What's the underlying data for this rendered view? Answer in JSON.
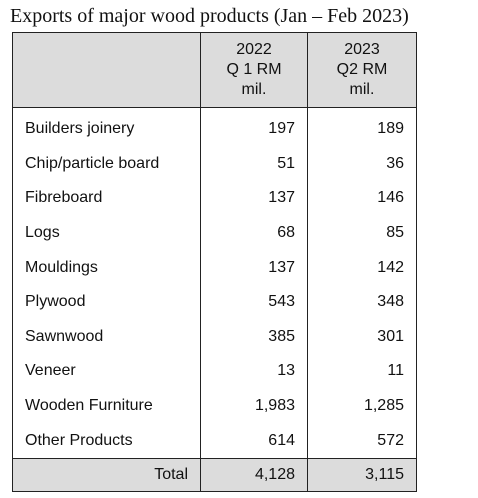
{
  "title": "Exports of major wood products (Jan – Feb 2023)",
  "header": {
    "col2": {
      "year": "2022",
      "period": "Q 1 RM",
      "unit": "mil."
    },
    "col3": {
      "year": "2023",
      "period": "Q2 RM",
      "unit": "mil."
    }
  },
  "rows": [
    {
      "product": "Builders joinery",
      "v2022": "197",
      "v2023": "189"
    },
    {
      "product": "Chip/particle board",
      "v2022": "51",
      "v2023": "36"
    },
    {
      "product": "Fibreboard",
      "v2022": "137",
      "v2023": "146"
    },
    {
      "product": "Logs",
      "v2022": "68",
      "v2023": "85"
    },
    {
      "product": "Mouldings",
      "v2022": "137",
      "v2023": "142"
    },
    {
      "product": "Plywood",
      "v2022": "543",
      "v2023": "348"
    },
    {
      "product": "Sawnwood",
      "v2022": "385",
      "v2023": "301"
    },
    {
      "product": "Veneer",
      "v2022": "13",
      "v2023": "11"
    },
    {
      "product": "Wooden Furniture",
      "v2022": "1,983",
      "v2023": "1,285"
    },
    {
      "product": "Other Products",
      "v2022": "614",
      "v2023": "572"
    }
  ],
  "total": {
    "label": "Total",
    "v2022": "4,128",
    "v2023": "3,115"
  },
  "colors": {
    "header_bg": "#dcdcdc",
    "border": "#222222",
    "text": "#111111"
  }
}
